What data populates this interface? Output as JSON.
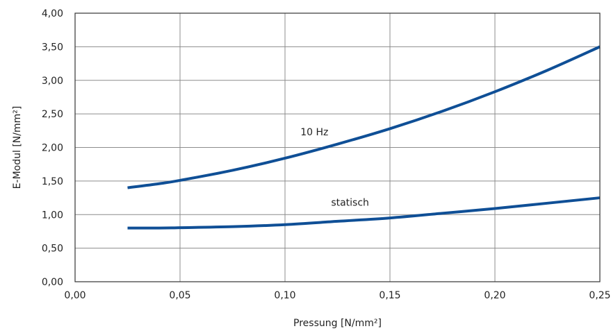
{
  "chart_data": {
    "type": "line",
    "xlabel": "Pressung [N/mm²]",
    "ylabel": "E-Modul [N/mm²]",
    "xlim": [
      0,
      0.25
    ],
    "ylim": [
      0,
      4
    ],
    "x_ticks": [
      0,
      0.05,
      0.1,
      0.15,
      0.2,
      0.25
    ],
    "x_tick_labels": [
      "0,00",
      "0,05",
      "0,10",
      "0,15",
      "0,20",
      "0,25"
    ],
    "y_ticks": [
      0,
      0.5,
      1.0,
      1.5,
      2.0,
      2.5,
      3.0,
      3.5,
      4.0
    ],
    "y_tick_labels": [
      "0,00",
      "0,50",
      "1,00",
      "1,50",
      "2,00",
      "2,50",
      "3,00",
      "3,50",
      "4,00"
    ],
    "grid": true,
    "series_color": "#0f4f96",
    "series": [
      {
        "name": "10 Hz",
        "x": [
          0.025,
          0.04,
          0.05,
          0.075,
          0.1,
          0.125,
          0.15,
          0.175,
          0.2,
          0.225,
          0.25
        ],
        "y": [
          1.4,
          1.46,
          1.51,
          1.66,
          1.84,
          2.05,
          2.28,
          2.54,
          2.83,
          3.15,
          3.5
        ]
      },
      {
        "name": "statisch",
        "x": [
          0.025,
          0.04,
          0.05,
          0.075,
          0.1,
          0.125,
          0.15,
          0.175,
          0.2,
          0.225,
          0.25
        ],
        "y": [
          0.8,
          0.8,
          0.805,
          0.82,
          0.85,
          0.9,
          0.95,
          1.02,
          1.09,
          1.17,
          1.25
        ]
      }
    ],
    "annotations": [
      {
        "text": "10 Hz",
        "x": 0.114,
        "y": 2.18
      },
      {
        "text": "statisch",
        "x": 0.131,
        "y": 1.13
      }
    ]
  }
}
